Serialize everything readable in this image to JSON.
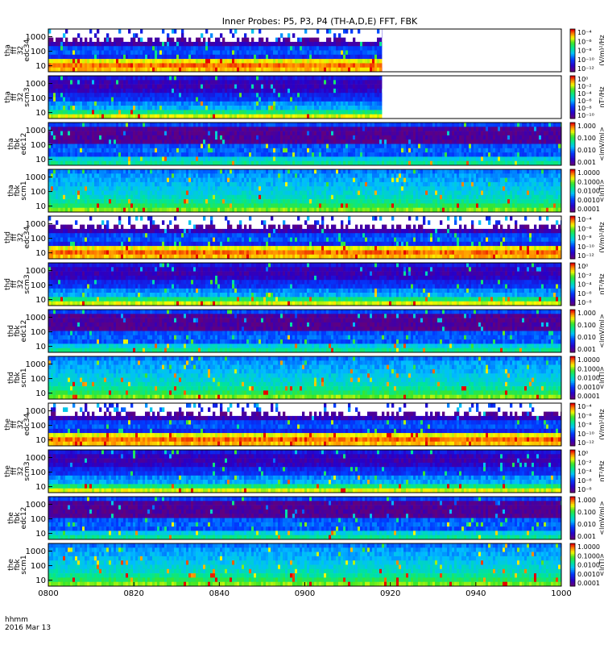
{
  "title": "Inner Probes: P5, P3, P4 (TH-A,D,E) FFT, FBK",
  "time_axis": {
    "ticks": [
      "0800",
      "0820",
      "0840",
      "0900",
      "0920",
      "0940",
      "1000"
    ],
    "row_label": "hhmm",
    "date_label": "2016 Mar 13"
  },
  "chart_data": {
    "type": "heatmap",
    "x_range": [
      "08:00",
      "10:00"
    ],
    "y_scale": "log",
    "colormap": "rainbow (purple-blue-cyan-green-yellow-orange-red)",
    "panels": [
      {
        "label_lines": [
          "tha",
          "fff",
          "32",
          "edc34"
        ],
        "yticks": [
          "1000",
          "100",
          "10"
        ],
        "cbar_ticks": [
          "10⁻⁴",
          "10⁻⁶",
          "10⁻⁸",
          "10⁻¹⁰",
          "10⁻¹²"
        ],
        "cbar_unit": "(V/m)²/Hz",
        "data_end_time": "09:18",
        "pattern": "efi"
      },
      {
        "label_lines": [
          "tha",
          "fff",
          "32",
          "scm3"
        ],
        "yticks": [
          "1000",
          "100",
          "10"
        ],
        "cbar_ticks": [
          "10⁰",
          "10⁻²",
          "10⁻⁴",
          "10⁻⁶",
          "10⁻⁸",
          "10⁻¹⁰"
        ],
        "cbar_unit": "nT²/Hz",
        "data_end_time": "09:18",
        "pattern": "scmfft"
      },
      {
        "label_lines": [
          "tha",
          "fbk",
          "edc12"
        ],
        "yticks": [
          "1000",
          "100",
          "10"
        ],
        "cbar_ticks": [
          "1.000",
          "0.100",
          "0.010",
          "0.001"
        ],
        "cbar_unit": "<|mV/m|>",
        "data_end_time": "10:00",
        "pattern": "fbke"
      },
      {
        "label_lines": [
          "tha",
          "fbk",
          "scm1"
        ],
        "yticks": [
          "1000",
          "100",
          "10"
        ],
        "cbar_ticks": [
          "1.0000",
          "0.1000",
          "0.0100",
          "0.0010",
          "0.0001"
        ],
        "cbar_unit": "<|nT|>",
        "data_end_time": "10:00",
        "pattern": "fbks"
      },
      {
        "label_lines": [
          "thd",
          "fff",
          "32",
          "edc34"
        ],
        "yticks": [
          "1000",
          "100",
          "10"
        ],
        "cbar_ticks": [
          "10⁻⁴",
          "10⁻⁶",
          "10⁻⁸",
          "10⁻¹⁰",
          "10⁻¹²"
        ],
        "cbar_unit": "(V/m)²/Hz",
        "data_end_time": "10:00",
        "pattern": "efi"
      },
      {
        "label_lines": [
          "thd",
          "fff",
          "32",
          "scm3"
        ],
        "yticks": [
          "1000",
          "100",
          "10"
        ],
        "cbar_ticks": [
          "10⁰",
          "10⁻²",
          "10⁻⁴",
          "10⁻⁶",
          "10⁻⁸"
        ],
        "cbar_unit": "nT²/Hz",
        "data_end_time": "10:00",
        "pattern": "scmfft"
      },
      {
        "label_lines": [
          "thd",
          "fbk",
          "edc12"
        ],
        "yticks": [
          "1000",
          "100",
          "10"
        ],
        "cbar_ticks": [
          "1.000",
          "0.100",
          "0.010",
          "0.001"
        ],
        "cbar_unit": "<|mV/m|>",
        "data_end_time": "10:00",
        "pattern": "fbke"
      },
      {
        "label_lines": [
          "thd",
          "fbk",
          "scm1"
        ],
        "yticks": [
          "1000",
          "100",
          "10"
        ],
        "cbar_ticks": [
          "1.0000",
          "0.1000",
          "0.0100",
          "0.0010",
          "0.0001"
        ],
        "cbar_unit": "<|nT|>",
        "data_end_time": "10:00",
        "pattern": "fbks"
      },
      {
        "label_lines": [
          "the",
          "fff",
          "32",
          "edc34"
        ],
        "yticks": [
          "1000",
          "100",
          "10"
        ],
        "cbar_ticks": [
          "10⁻⁴",
          "10⁻⁶",
          "10⁻⁸",
          "10⁻¹⁰",
          "10⁻¹²"
        ],
        "cbar_unit": "(V/m)²/Hz",
        "data_end_time": "10:00",
        "pattern": "efi"
      },
      {
        "label_lines": [
          "the",
          "fff",
          "32",
          "scm3"
        ],
        "yticks": [
          "1000",
          "100",
          "10"
        ],
        "cbar_ticks": [
          "10⁰",
          "10⁻²",
          "10⁻⁴",
          "10⁻⁶",
          "10⁻⁸"
        ],
        "cbar_unit": "nT²/Hz",
        "data_end_time": "10:00",
        "pattern": "scmfft"
      },
      {
        "label_lines": [
          "the",
          "fbk",
          "edc12"
        ],
        "yticks": [
          "1000",
          "100",
          "10"
        ],
        "cbar_ticks": [
          "1.000",
          "0.100",
          "0.010",
          "0.001"
        ],
        "cbar_unit": "<|mV/m|>",
        "data_end_time": "10:00",
        "pattern": "fbke"
      },
      {
        "label_lines": [
          "the",
          "fbk",
          "scm1"
        ],
        "yticks": [
          "1000",
          "100",
          "10"
        ],
        "cbar_ticks": [
          "1.0000",
          "0.1000",
          "0.0100",
          "0.0010",
          "0.0001"
        ],
        "cbar_unit": "<|nT|>",
        "data_end_time": "10:00",
        "pattern": "fbks"
      }
    ]
  }
}
